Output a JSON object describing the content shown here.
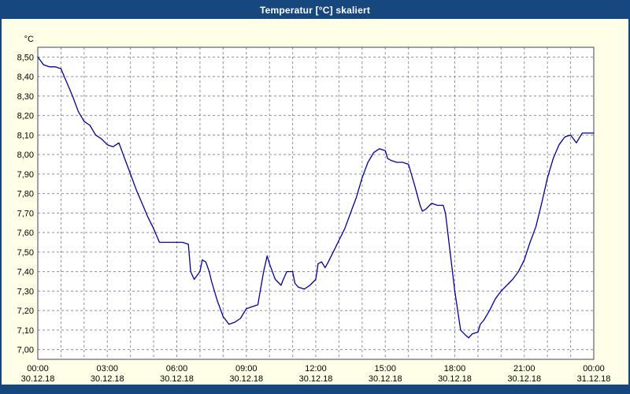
{
  "window": {
    "title": "Temperatur [°C] skaliert"
  },
  "colors": {
    "title_bar": "#17477f",
    "background": "#ffffe8",
    "plot_background": "#ffffff",
    "grid": "#8890a8",
    "plot_border": "#404060",
    "axis_text": "#000000",
    "line": "#0000a0"
  },
  "chart_data": {
    "type": "line",
    "title": "Temperatur [°C] skaliert",
    "xlabel": "",
    "ylabel": "°C",
    "ylim": [
      7.0,
      8.5
    ],
    "ytick_step": 0.1,
    "grid": "dashed",
    "legend": "none",
    "y_tick_labels": [
      "8,50",
      "8,40",
      "8,30",
      "8,20",
      "8,10",
      "8,00",
      "7,90",
      "7,80",
      "7,70",
      "7,60",
      "7,50",
      "7,40",
      "7,30",
      "7,20",
      "7,10",
      "7,00"
    ],
    "x_hours_range": [
      0,
      24
    ],
    "x_minor_grid_step_hours": 1,
    "x_ticks": [
      {
        "hour": 0,
        "time": "00:00",
        "date": "30.12.18"
      },
      {
        "hour": 3,
        "time": "03:00",
        "date": "30.12.18"
      },
      {
        "hour": 6,
        "time": "06:00",
        "date": "30.12.18"
      },
      {
        "hour": 9,
        "time": "09:00",
        "date": "30.12.18"
      },
      {
        "hour": 12,
        "time": "12:00",
        "date": "30.12.18"
      },
      {
        "hour": 15,
        "time": "15:00",
        "date": "30.12.18"
      },
      {
        "hour": 18,
        "time": "18:00",
        "date": "30.12.18"
      },
      {
        "hour": 21,
        "time": "21:00",
        "date": "30.12.18"
      },
      {
        "hour": 24,
        "time": "00:00",
        "date": "31.12.18"
      }
    ],
    "series": [
      {
        "name": "Temperatur",
        "x": [
          0,
          0.25,
          0.5,
          0.75,
          1,
          1.25,
          1.5,
          1.75,
          2,
          2.25,
          2.5,
          2.75,
          3,
          3.25,
          3.5,
          3.75,
          4,
          4.25,
          4.5,
          4.75,
          5,
          5.25,
          5.5,
          5.75,
          6,
          6.25,
          6.5,
          6.6,
          6.75,
          7,
          7.1,
          7.25,
          7.4,
          7.5,
          7.75,
          8,
          8.25,
          8.5,
          8.75,
          9,
          9.25,
          9.5,
          9.6,
          9.75,
          9.9,
          10,
          10.25,
          10.5,
          10.6,
          10.75,
          11,
          11.1,
          11.25,
          11.5,
          11.75,
          12,
          12.1,
          12.25,
          12.4,
          12.5,
          12.75,
          13,
          13.25,
          13.5,
          13.75,
          14,
          14.25,
          14.5,
          14.75,
          15,
          15.1,
          15.25,
          15.5,
          15.75,
          16,
          16.25,
          16.5,
          16.6,
          16.75,
          17,
          17.25,
          17.5,
          17.6,
          17.75,
          18,
          18.25,
          18.5,
          18.6,
          18.75,
          19,
          19.1,
          19.25,
          19.5,
          19.75,
          20,
          20.25,
          20.5,
          20.75,
          21,
          21.25,
          21.5,
          21.75,
          22,
          22.25,
          22.5,
          22.75,
          23,
          23.25,
          23.5,
          23.75,
          24
        ],
        "values": [
          8.5,
          8.46,
          8.45,
          8.45,
          8.44,
          8.37,
          8.3,
          8.22,
          8.17,
          8.15,
          8.1,
          8.08,
          8.05,
          8.04,
          8.06,
          7.98,
          7.9,
          7.82,
          7.75,
          7.68,
          7.62,
          7.55,
          7.55,
          7.55,
          7.55,
          7.55,
          7.54,
          7.4,
          7.36,
          7.4,
          7.46,
          7.45,
          7.4,
          7.35,
          7.25,
          7.17,
          7.13,
          7.14,
          7.16,
          7.21,
          7.22,
          7.23,
          7.3,
          7.4,
          7.48,
          7.44,
          7.36,
          7.33,
          7.36,
          7.4,
          7.4,
          7.34,
          7.32,
          7.31,
          7.33,
          7.36,
          7.44,
          7.45,
          7.42,
          7.44,
          7.5,
          7.56,
          7.62,
          7.7,
          7.78,
          7.88,
          7.96,
          8.01,
          8.03,
          8.02,
          7.98,
          7.97,
          7.96,
          7.96,
          7.95,
          7.85,
          7.74,
          7.71,
          7.72,
          7.75,
          7.74,
          7.74,
          7.7,
          7.55,
          7.3,
          7.1,
          7.07,
          7.06,
          7.08,
          7.09,
          7.13,
          7.15,
          7.2,
          7.26,
          7.3,
          7.33,
          7.36,
          7.4,
          7.46,
          7.55,
          7.63,
          7.75,
          7.88,
          7.98,
          8.05,
          8.09,
          8.1,
          8.06,
          8.11,
          8.11,
          8.11
        ]
      }
    ]
  }
}
